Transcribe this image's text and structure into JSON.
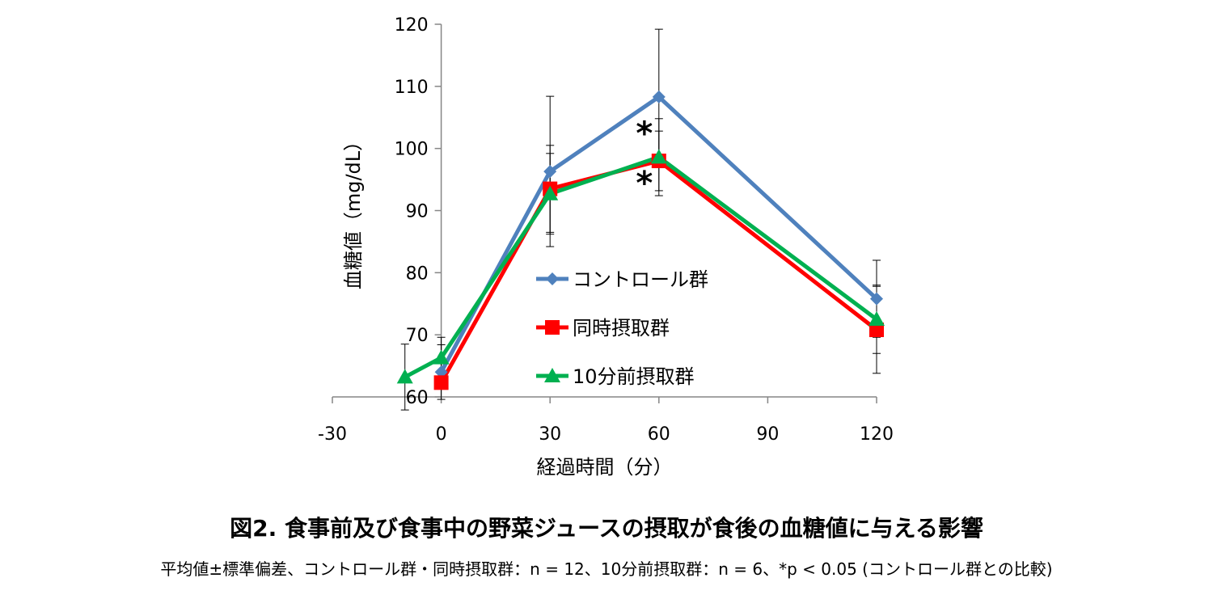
{
  "chart_data": {
    "type": "line",
    "xlabel": "経過時間（分）",
    "ylabel": "血糖値（mg/dL）",
    "xlim": [
      -30,
      120
    ],
    "ylim": [
      60,
      120
    ],
    "xticks": [
      -30,
      0,
      30,
      60,
      90,
      120
    ],
    "yticks": [
      60,
      70,
      80,
      90,
      100,
      110,
      120
    ],
    "legend_position": "center",
    "series": [
      {
        "name": "コントロール群",
        "color": "#4F81BD",
        "marker": "diamond",
        "x": [
          0,
          30,
          60,
          120
        ],
        "y": [
          64.0,
          96.3,
          108.3,
          75.8
        ],
        "error": [
          4.4,
          12.1,
          10.9,
          6.2
        ]
      },
      {
        "name": "同時摂取群",
        "color": "#FF0000",
        "marker": "square",
        "x": [
          0,
          30,
          60,
          120
        ],
        "y": [
          62.3,
          93.5,
          98.0,
          70.8
        ],
        "error": [
          0,
          7.0,
          4.8,
          7.0
        ]
      },
      {
        "name": "10分前摂取群",
        "color": "#00B050",
        "marker": "triangle",
        "x": [
          -10,
          0,
          30,
          60,
          120
        ],
        "y": [
          63.2,
          66.3,
          92.7,
          98.6,
          72.5
        ],
        "error": [
          5.3,
          3.3,
          6.5,
          6.2,
          5.5
        ]
      }
    ],
    "annotations": [
      {
        "text": "*",
        "x": 60,
        "y": 102.5
      },
      {
        "text": "*",
        "x": 60,
        "y": 94.5
      }
    ]
  },
  "caption": "図2. 食事前及び食事中の野菜ジュースの摂取が食後の血糖値に与える影響",
  "note": "平均値±標準偏差、コントロール群・同時摂取群：n = 12、10分前摂取群：n = 6、*p < 0.05 (コントロール群との比較)"
}
